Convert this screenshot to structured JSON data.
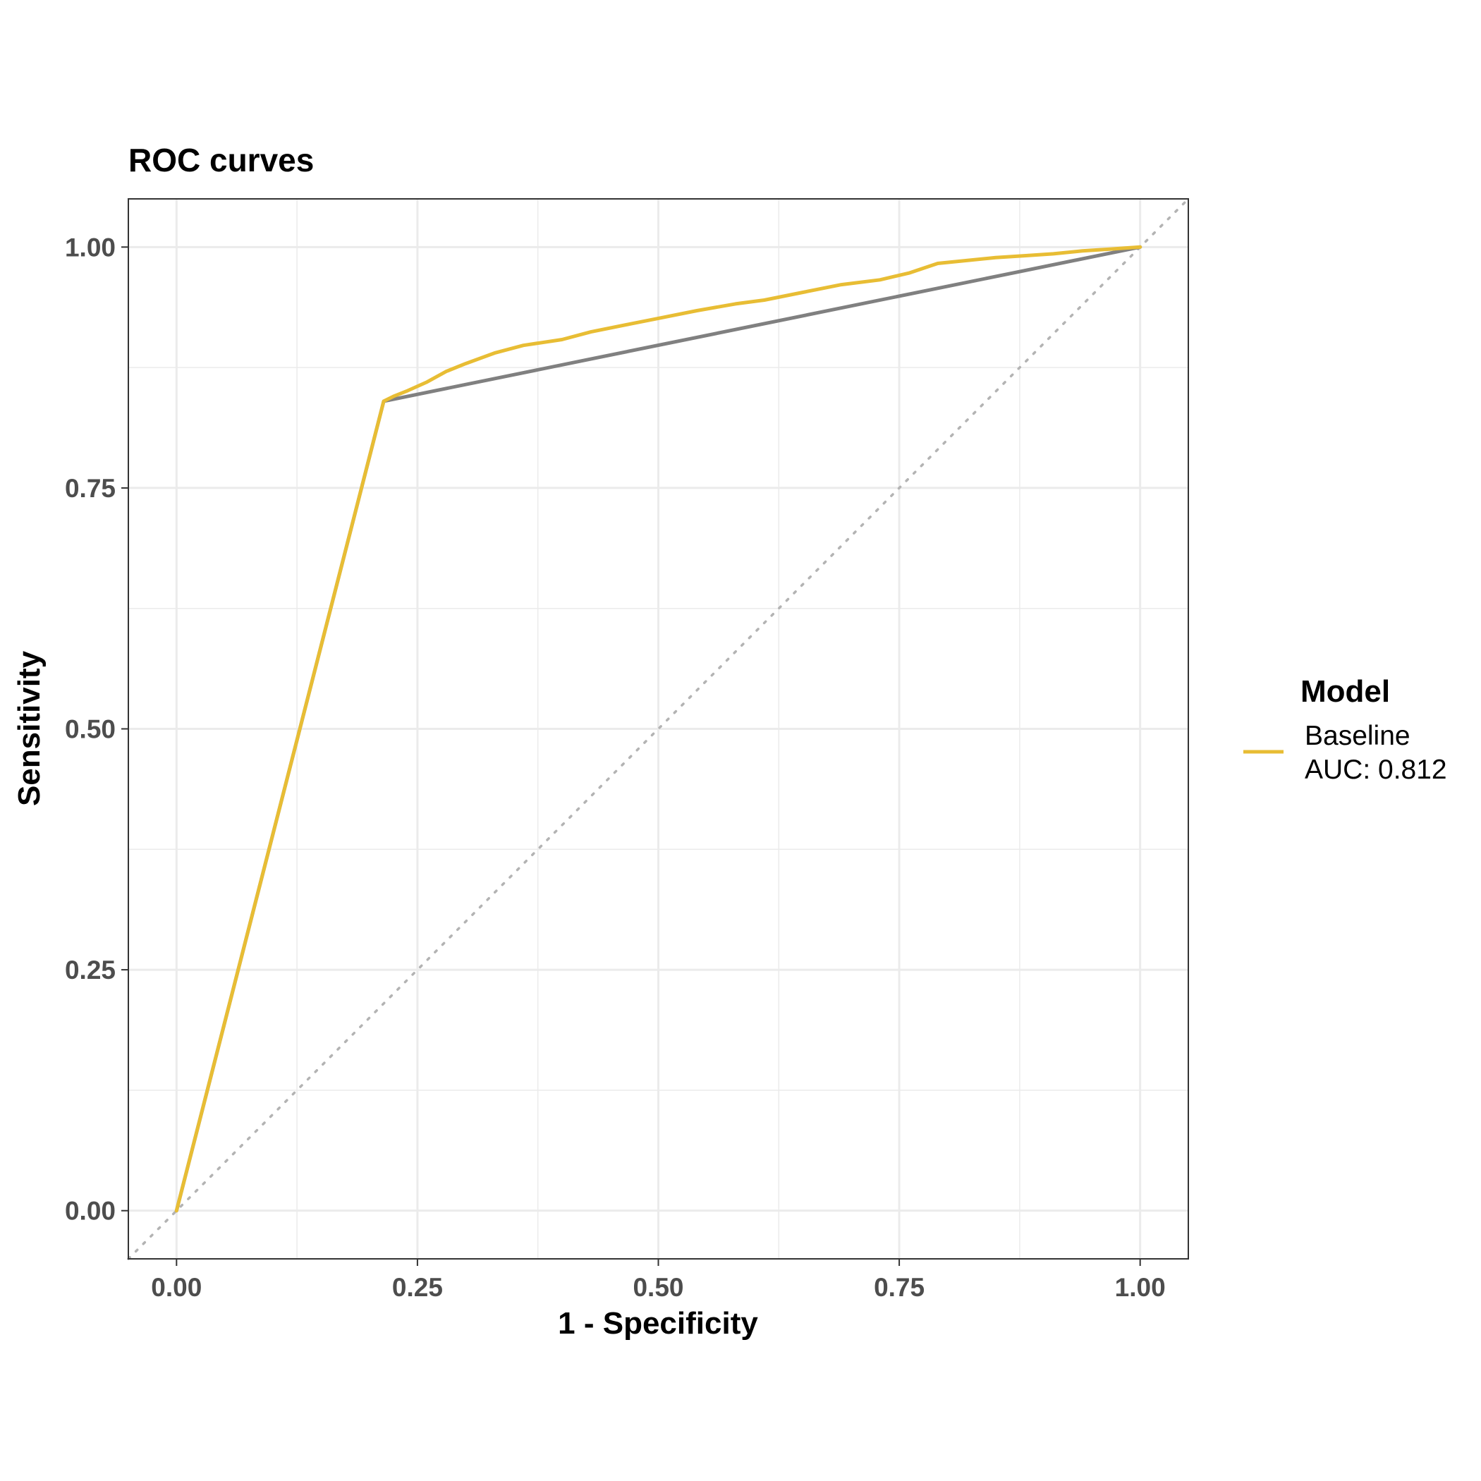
{
  "chart_data": {
    "type": "line",
    "title": "ROC curves",
    "xlabel": "1 - Specificity",
    "ylabel": "Sensitivity",
    "xlim": [
      -0.05,
      1.05
    ],
    "ylim": [
      -0.05,
      1.05
    ],
    "x_ticks": [
      0,
      0.25,
      0.5,
      0.75,
      1
    ],
    "x_tick_labels": [
      "0.00",
      "0.25",
      "0.50",
      "0.75",
      "1.00"
    ],
    "y_ticks": [
      0,
      0.25,
      0.5,
      0.75,
      1
    ],
    "y_tick_labels": [
      "0.00",
      "0.25",
      "0.50",
      "0.75",
      "1.00"
    ],
    "grid": true,
    "legend": {
      "title": "Model",
      "position": "right",
      "entries": [
        {
          "lines": [
            "Baseline",
            "AUC: 0.812"
          ],
          "color": "#E8BD34"
        }
      ]
    },
    "reference_line": {
      "x": [
        -0.05,
        1.05
      ],
      "y": [
        -0.05,
        1.05
      ],
      "style": "dotted",
      "color": "#b3b3b3"
    },
    "series": [
      {
        "name": "Baseline",
        "color": "#E8BD34",
        "points": [
          [
            0,
            0
          ],
          [
            0.215,
            0.84
          ],
          [
            0.225,
            0.845
          ],
          [
            0.24,
            0.851
          ],
          [
            0.26,
            0.86
          ],
          [
            0.28,
            0.871
          ],
          [
            0.3,
            0.879
          ],
          [
            0.33,
            0.89
          ],
          [
            0.36,
            0.898
          ],
          [
            0.4,
            0.904
          ],
          [
            0.43,
            0.912
          ],
          [
            0.47,
            0.92
          ],
          [
            0.5,
            0.926
          ],
          [
            0.54,
            0.934
          ],
          [
            0.58,
            0.941
          ],
          [
            0.61,
            0.945
          ],
          [
            0.65,
            0.953
          ],
          [
            0.69,
            0.961
          ],
          [
            0.73,
            0.966
          ],
          [
            0.76,
            0.973
          ],
          [
            0.79,
            0.983
          ],
          [
            0.82,
            0.986
          ],
          [
            0.85,
            0.989
          ],
          [
            0.88,
            0.991
          ],
          [
            0.91,
            0.993
          ],
          [
            0.94,
            0.996
          ],
          [
            0.97,
            0.998
          ],
          [
            1.0,
            1.0
          ]
        ]
      },
      {
        "color": "#808080",
        "points": [
          [
            0,
            0
          ],
          [
            0.215,
            0.84
          ],
          [
            1.0,
            1.0
          ]
        ]
      }
    ]
  }
}
